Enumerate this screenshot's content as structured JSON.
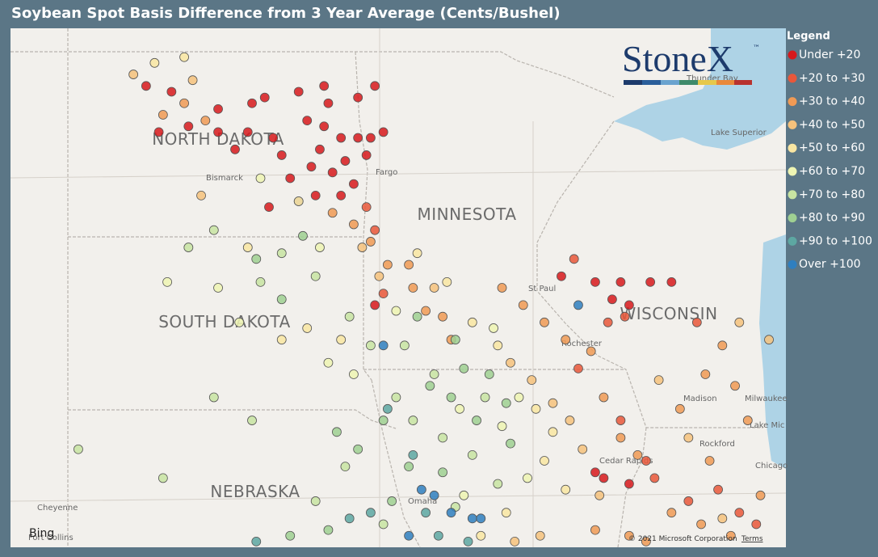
{
  "chart_data": {
    "type": "scatter",
    "title": "Soybean Spot Basis Difference from 3 Year Average (Cents/Bushel)",
    "legend_title": "Legend",
    "logo": "StoneX",
    "logo_mark": "™",
    "xlim": [
      -105.4,
      -87.1
    ],
    "ylim": [
      40.4,
      49.4
    ],
    "places": [
      "NORTH DAKOTA",
      "SOUTH DAKOTA",
      "MINNESOTA",
      "WISCONSIN",
      "NEBRASKA",
      "Bismarck",
      "Fargo",
      "St Paul",
      "Rochester",
      "Madison",
      "Milwaukee",
      "Cedar Rapids",
      "Rockford",
      "Chicago",
      "Cheyenne",
      "Omaha",
      "Fort Collins",
      "Lake Superior",
      "Lake Mic",
      "Thunder Bay"
    ],
    "attribution": "Bing",
    "copyright": "© 2021 Microsoft Corporation",
    "terms": "Terms",
    "series": [
      {
        "name": "Under +20",
        "color": "#d7191c",
        "x": [
          -102.2,
          -101.6,
          -100.5,
          -99.7,
          -99.4,
          -98.6,
          -98.0,
          -97.9,
          -97.2,
          -96.8,
          -101.9,
          -101.2,
          -100.5,
          -99.8,
          -99.2,
          -98.4,
          -98.0,
          -97.6,
          -97.2,
          -96.6,
          -100.1,
          -99.0,
          -98.3,
          -97.8,
          -97.5,
          -97.0,
          -97.3,
          -98.8,
          -98.6,
          -99.3,
          -98.2,
          -97.6,
          -96.9,
          -98.1,
          -92.4,
          -91.6,
          -91.0,
          -90.3,
          -89.8,
          -91.2,
          -90.8,
          -96.8,
          -91.6,
          -91.4,
          -90.8
        ],
        "y": [
          48.4,
          48.3,
          48.0,
          48.1,
          48.2,
          48.3,
          48.4,
          48.1,
          48.2,
          48.4,
          47.6,
          47.7,
          47.6,
          47.6,
          47.5,
          47.8,
          47.7,
          47.5,
          47.5,
          47.6,
          47.3,
          47.2,
          47.0,
          46.9,
          47.1,
          47.2,
          46.7,
          46.8,
          46.4,
          46.3,
          46.5,
          46.5,
          47.5,
          47.3,
          45.1,
          45.0,
          45.0,
          45.0,
          45.0,
          44.7,
          44.6,
          44.6,
          41.7,
          41.6,
          41.5
        ]
      },
      {
        "name": "+20 to +30",
        "color": "#e9573a",
        "x": [
          -97.0,
          -96.8,
          -96.6,
          -92.1,
          -91.3,
          -90.9,
          -92.0,
          -89.2,
          -90.4,
          -89.4,
          -88.7,
          -88.2,
          -87.8,
          -90.2,
          -91.0
        ],
        "y": [
          46.3,
          45.9,
          44.8,
          45.4,
          44.3,
          44.4,
          43.5,
          44.3,
          41.9,
          41.2,
          41.4,
          41.0,
          40.8,
          41.6,
          42.6
        ]
      },
      {
        "name": "+30 to +40",
        "color": "#f09a55",
        "x": [
          -101.8,
          -101.3,
          -100.8,
          -97.8,
          -97.3,
          -96.9,
          -96.5,
          -96.0,
          -95.9,
          -95.6,
          -95.2,
          -95.0,
          -93.8,
          -93.3,
          -92.8,
          -92.3,
          -91.7,
          -91.4,
          -91.0,
          -90.6,
          -89.6,
          -89.0,
          -88.6,
          -88.3,
          -88.0,
          -89.8,
          -89.1,
          -88.4,
          -87.7,
          -90.8,
          -91.6,
          -90.4,
          -88.9
        ],
        "y": [
          47.9,
          48.1,
          47.8,
          46.2,
          46.0,
          45.7,
          45.3,
          45.3,
          44.9,
          44.5,
          44.4,
          44.0,
          44.9,
          44.6,
          44.3,
          44.0,
          43.8,
          43.0,
          42.3,
          42.0,
          42.8,
          43.4,
          43.9,
          43.2,
          42.6,
          41.0,
          40.8,
          40.6,
          41.3,
          40.6,
          40.7,
          40.5,
          41.9
        ]
      },
      {
        "name": "+40 to +50",
        "color": "#f6c27c",
        "x": [
          -102.5,
          -101.1,
          -100.9,
          -97.1,
          -96.7,
          -95.4,
          -93.6,
          -93.1,
          -92.6,
          -92.2,
          -91.9,
          -91.5,
          -90.1,
          -89.4,
          -88.6,
          -92.9,
          -93.5,
          -87.5,
          -88.2
        ],
        "y": [
          48.6,
          48.5,
          46.5,
          45.6,
          45.1,
          44.9,
          43.6,
          43.3,
          42.9,
          42.6,
          42.1,
          41.3,
          43.3,
          42.3,
          40.9,
          40.6,
          40.5,
          44.0,
          44.3
        ]
      },
      {
        "name": "+50 to +60",
        "color": "#f9e6a2",
        "x": [
          -102.0,
          -101.3,
          -99.8,
          -99.0,
          -98.4,
          -97.6,
          -95.8,
          -95.1,
          -94.5,
          -93.9,
          -93.0,
          -92.6,
          -92.8,
          -92.3,
          -93.7,
          -94.3
        ],
        "y": [
          48.8,
          48.9,
          45.6,
          44.0,
          44.2,
          44.0,
          45.5,
          45.0,
          44.3,
          43.9,
          42.8,
          42.4,
          41.9,
          41.4,
          41.0,
          40.6
        ]
      },
      {
        "name": "+60 to +70",
        "color": "#eef5b3",
        "x": [
          -99.5,
          -98.6,
          -98.1,
          -100.5,
          -101.7,
          -100.0,
          -97.9,
          -97.3,
          -96.3,
          -94.0,
          -93.4,
          -93.8,
          -94.8,
          -93.2,
          -94.7
        ],
        "y": [
          46.8,
          46.4,
          45.6,
          44.9,
          45.0,
          44.3,
          43.6,
          43.4,
          44.5,
          44.2,
          43.0,
          42.5,
          42.8,
          41.6,
          41.3
        ]
      },
      {
        "name": "+70 to +80",
        "color": "#c8e4a2",
        "x": [
          -101.2,
          -100.6,
          -99.5,
          -99.0,
          -98.2,
          -97.4,
          -96.9,
          -96.3,
          -95.9,
          -95.2,
          -94.5,
          -93.9,
          -94.9,
          -97.5,
          -98.2,
          -96.6,
          -103.8,
          -101.8,
          -100.6,
          -99.7,
          -96.1,
          -94.2,
          -95.4
        ],
        "y": [
          45.6,
          45.9,
          45.0,
          45.5,
          45.1,
          44.4,
          43.9,
          43.0,
          42.6,
          42.3,
          42.0,
          41.5,
          41.1,
          41.8,
          41.2,
          40.8,
          42.1,
          41.6,
          43.0,
          42.6,
          43.9,
          43.0,
          43.4
        ]
      },
      {
        "name": "+80 to +90",
        "color": "#9fd092",
        "x": [
          -99.6,
          -99.0,
          -98.5,
          -97.7,
          -97.2,
          -96.6,
          -95.5,
          -95.0,
          -94.7,
          -94.1,
          -94.4,
          -93.7,
          -96.0,
          -96.4,
          -97.9,
          -98.8,
          -95.2,
          -93.6,
          -95.8,
          -94.9
        ],
        "y": [
          45.4,
          44.7,
          45.8,
          42.4,
          42.1,
          42.6,
          43.2,
          43.0,
          43.5,
          43.4,
          42.6,
          42.9,
          41.8,
          41.2,
          40.7,
          40.6,
          41.7,
          42.2,
          44.4,
          44.0
        ]
      },
      {
        "name": "+90 to +100",
        "color": "#5da7a2",
        "x": [
          -97.4,
          -96.9,
          -95.6,
          -94.6,
          -99.6,
          -95.9,
          -96.5,
          -95.3
        ],
        "y": [
          40.9,
          41.0,
          41.0,
          40.5,
          40.5,
          42.0,
          42.8,
          40.6
        ]
      },
      {
        "name": "Over +100",
        "color": "#2f7fbf",
        "x": [
          -95.7,
          -95.4,
          -95.0,
          -94.5,
          -94.3,
          -96.6,
          -92.0,
          -96.0
        ],
        "y": [
          41.4,
          41.3,
          41.0,
          40.9,
          40.9,
          43.9,
          44.6,
          40.6
        ]
      }
    ]
  }
}
